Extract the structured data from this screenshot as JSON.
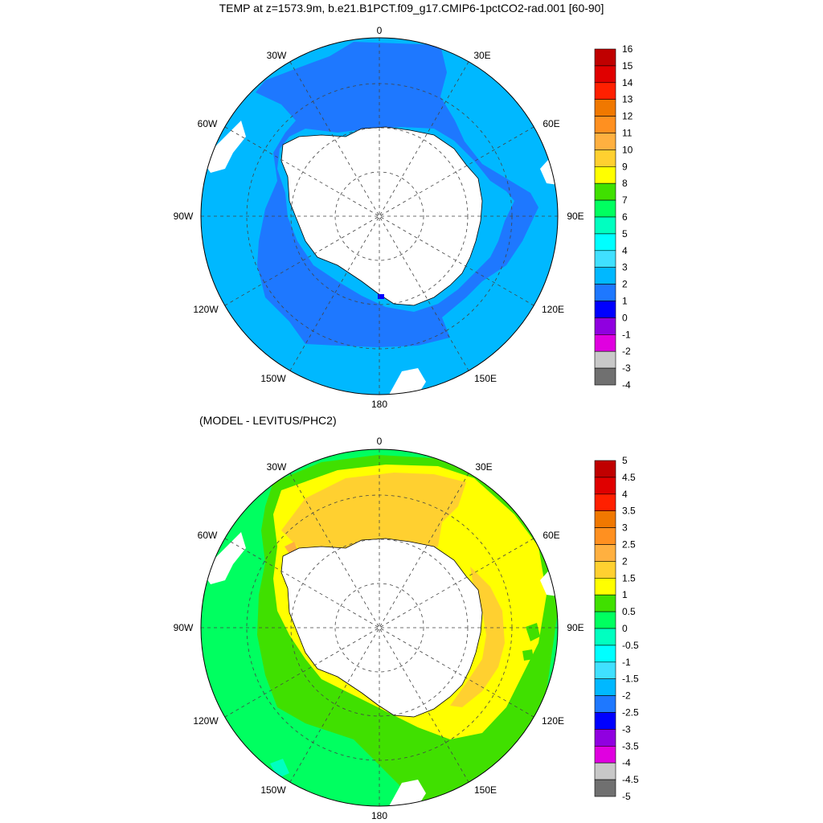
{
  "title": "TEMP at z=1573.9m, b.e21.B1PCT.f09_g17.CMIP6-1pctCO2-rad.001 [60-90]",
  "panel2_title": "(MODEL - LEVITUS/PHC2)",
  "longitude_labels": [
    "0",
    "30E",
    "60E",
    "90E",
    "120E",
    "150E",
    "180",
    "150W",
    "120W",
    "90W",
    "60W",
    "30W"
  ],
  "colorbar1": {
    "labels": [
      "16",
      "15",
      "14",
      "13",
      "12",
      "11",
      "10",
      "9",
      "8",
      "7",
      "6",
      "5",
      "4",
      "3",
      "2",
      "1",
      "0",
      "-1",
      "-2",
      "-3",
      "-4"
    ],
    "colors": [
      "#c00000",
      "#e00000",
      "#ff2000",
      "#f07800",
      "#ff9020",
      "#ffb040",
      "#ffd030",
      "#ffff00",
      "#40e000",
      "#00ff60",
      "#00ffc0",
      "#00ffff",
      "#40e0ff",
      "#00b8ff",
      "#1e78ff",
      "#0000ff",
      "#9000e0",
      "#e000e0",
      "#c8c8c8",
      "#707070"
    ]
  },
  "colorbar2": {
    "labels": [
      "5",
      "4.5",
      "4",
      "3.5",
      "3",
      "2.5",
      "2",
      "1.5",
      "1",
      "0.5",
      "0",
      "-0.5",
      "-1",
      "-1.5",
      "-2",
      "-2.5",
      "-3",
      "-3.5",
      "-4",
      "-4.5",
      "-5"
    ],
    "colors": [
      "#c00000",
      "#e00000",
      "#ff2000",
      "#f07800",
      "#ff9020",
      "#ffb040",
      "#ffd030",
      "#ffff00",
      "#40e000",
      "#00ff60",
      "#00ffc0",
      "#00ffff",
      "#40e0ff",
      "#00b8ff",
      "#1e78ff",
      "#0000ff",
      "#9000e0",
      "#e000e0",
      "#c8c8c8",
      "#707070"
    ]
  },
  "map_colors": {
    "light_blue": "#00b8ff",
    "mid_blue": "#1e78ff",
    "dark_blue": "#0000ff",
    "yellow": "#ffff00",
    "gold": "#ffd030",
    "orange": "#ffb040",
    "green": "#00ff60",
    "lime": "#40e000",
    "cyan": "#00ffc0",
    "land": "#ffffff"
  }
}
